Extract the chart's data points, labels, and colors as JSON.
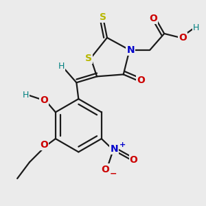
{
  "bg_color": "#ebebeb",
  "bond_color": "#1a1a1a",
  "bond_width": 1.6,
  "figsize": [
    3.0,
    3.0
  ],
  "dpi": 100,
  "colors": {
    "S": "#b8b800",
    "N": "#0000cc",
    "O": "#cc0000",
    "H": "#008080",
    "C": "#1a1a1a"
  }
}
